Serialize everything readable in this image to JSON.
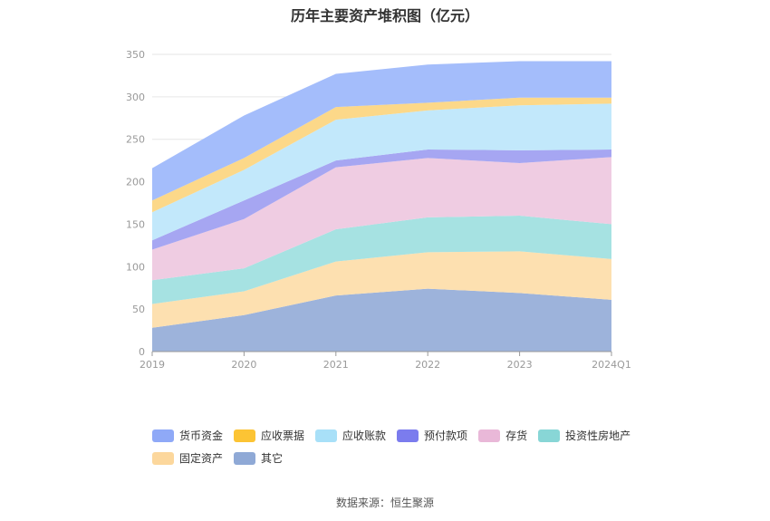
{
  "chart_data": {
    "type": "area",
    "stacked": true,
    "title": "历年主要资产堆积图（亿元）",
    "categories": [
      "2019",
      "2020",
      "2021",
      "2022",
      "2023",
      "2024Q1"
    ],
    "ylim": [
      0,
      350
    ],
    "yticks": [
      0,
      50,
      100,
      150,
      200,
      250,
      300,
      350
    ],
    "grid": true,
    "legend_position": "bottom",
    "series": [
      {
        "name": "其它",
        "color": "#9db3db",
        "values": [
          28,
          43,
          66,
          74,
          69,
          61
        ]
      },
      {
        "name": "固定资产",
        "color": "#fde0b0",
        "values": [
          28,
          28,
          40,
          43,
          49,
          48
        ]
      },
      {
        "name": "投资性房地产",
        "color": "#a6e2e2",
        "values": [
          28,
          27,
          38,
          41,
          42,
          41
        ]
      },
      {
        "name": "存货",
        "color": "#efcce2",
        "values": [
          36,
          58,
          73,
          70,
          62,
          79
        ]
      },
      {
        "name": "预付款项",
        "color": "#a6a6f2",
        "values": [
          11,
          22,
          8,
          10,
          15,
          9
        ]
      },
      {
        "name": "应收账款",
        "color": "#c2e8fb",
        "values": [
          33,
          36,
          48,
          46,
          53,
          54
        ]
      },
      {
        "name": "应收票据",
        "color": "#fcd889",
        "values": [
          14,
          14,
          15,
          9,
          9,
          7
        ]
      },
      {
        "name": "货币资金",
        "color": "#a4bdfb",
        "values": [
          38,
          50,
          39,
          45,
          43,
          43
        ]
      }
    ],
    "legend_order": [
      "货币资金",
      "应收票据",
      "应收账款",
      "预付款项",
      "存货",
      "投资性房地产",
      "固定资产",
      "其它"
    ],
    "legend_colors": {
      "货币资金": "#8fa9f7",
      "应收票据": "#fcc434",
      "应收账款": "#a8e0f8",
      "预付款项": "#7b7cee",
      "存货": "#e9b8d8",
      "投资性房地产": "#88d6d6",
      "固定资产": "#fcd79c",
      "其它": "#8fa9d6"
    }
  },
  "source": "数据来源：恒生聚源"
}
